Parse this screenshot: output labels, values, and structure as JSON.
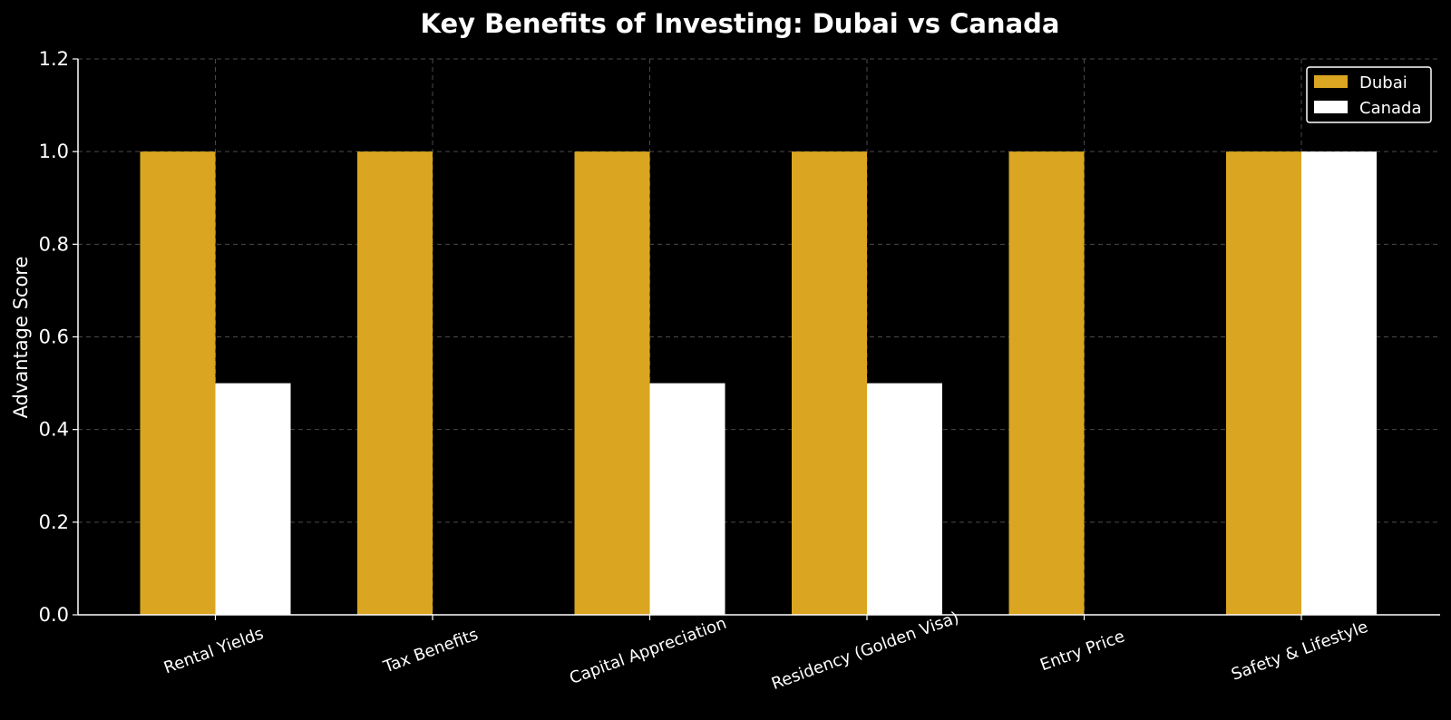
{
  "chart_data": {
    "type": "bar",
    "title": "Key Benefits of Investing: Dubai vs Canada",
    "xlabel": "",
    "ylabel": "Advantage Score",
    "categories": [
      "Rental Yields",
      "Tax Benefits",
      "Capital Appreciation",
      "Residency (Golden Visa)",
      "Entry Price",
      "Safety & Lifestyle"
    ],
    "series": [
      {
        "name": "Dubai",
        "values": [
          1.0,
          1.0,
          1.0,
          1.0,
          1.0,
          1.0
        ],
        "color": "#DAA520"
      },
      {
        "name": "Canada",
        "values": [
          0.5,
          0.0,
          0.5,
          0.5,
          0.0,
          1.0
        ],
        "color": "#FFFFFF"
      }
    ],
    "ylim": [
      0,
      1.2
    ],
    "yticks": [
      "0.0",
      "0.2",
      "0.4",
      "0.6",
      "0.8",
      "1.0",
      "1.2"
    ],
    "grid": true,
    "legend": "top-right",
    "background": "#000000"
  }
}
